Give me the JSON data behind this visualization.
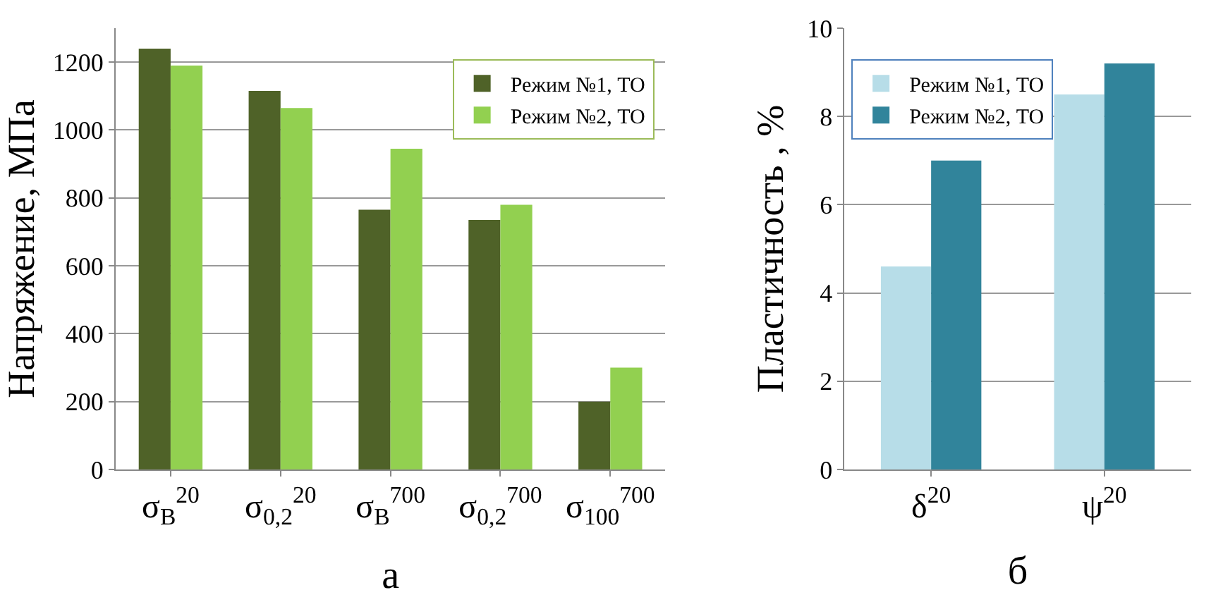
{
  "chart_data": [
    {
      "type": "bar",
      "xlabel": "а",
      "ylabel": "Напряжение, МПа",
      "categories": [
        "σ$_{B}$$^{20}$",
        "σ$_{0,2}$$^{20}$",
        "σ$_{B}$$^{700}$",
        "σ$_{0,2}$$^{700}$",
        "σ$_{100}$$^{700}$"
      ],
      "series": [
        {
          "name": "Режим №1, ТО",
          "color": "#4f6228",
          "values": [
            1240,
            1115,
            765,
            735,
            200
          ]
        },
        {
          "name": "Режим №2, ТО",
          "color": "#92d050",
          "values": [
            1190,
            1065,
            945,
            780,
            300
          ]
        }
      ],
      "ylim": [
        0,
        1300
      ],
      "yticks": [
        0,
        200,
        400,
        600,
        800,
        1000,
        1200
      ],
      "grid": "y",
      "legend": "top right"
    },
    {
      "type": "bar",
      "xlabel": "б",
      "ylabel": "Пластичность , %",
      "categories": [
        "δ$^{20}$",
        "ψ$^{20}$"
      ],
      "series": [
        {
          "name": "Режим №1, ТО",
          "color": "#b7dde8",
          "values": [
            4.6,
            8.5
          ]
        },
        {
          "name": "Режим №2, ТО",
          "color": "#31849b",
          "values": [
            7.0,
            9.2
          ]
        }
      ],
      "ylim": [
        0,
        10
      ],
      "yticks": [
        0,
        2,
        4,
        6,
        8,
        10
      ],
      "grid": "y",
      "legend": "top left"
    }
  ]
}
